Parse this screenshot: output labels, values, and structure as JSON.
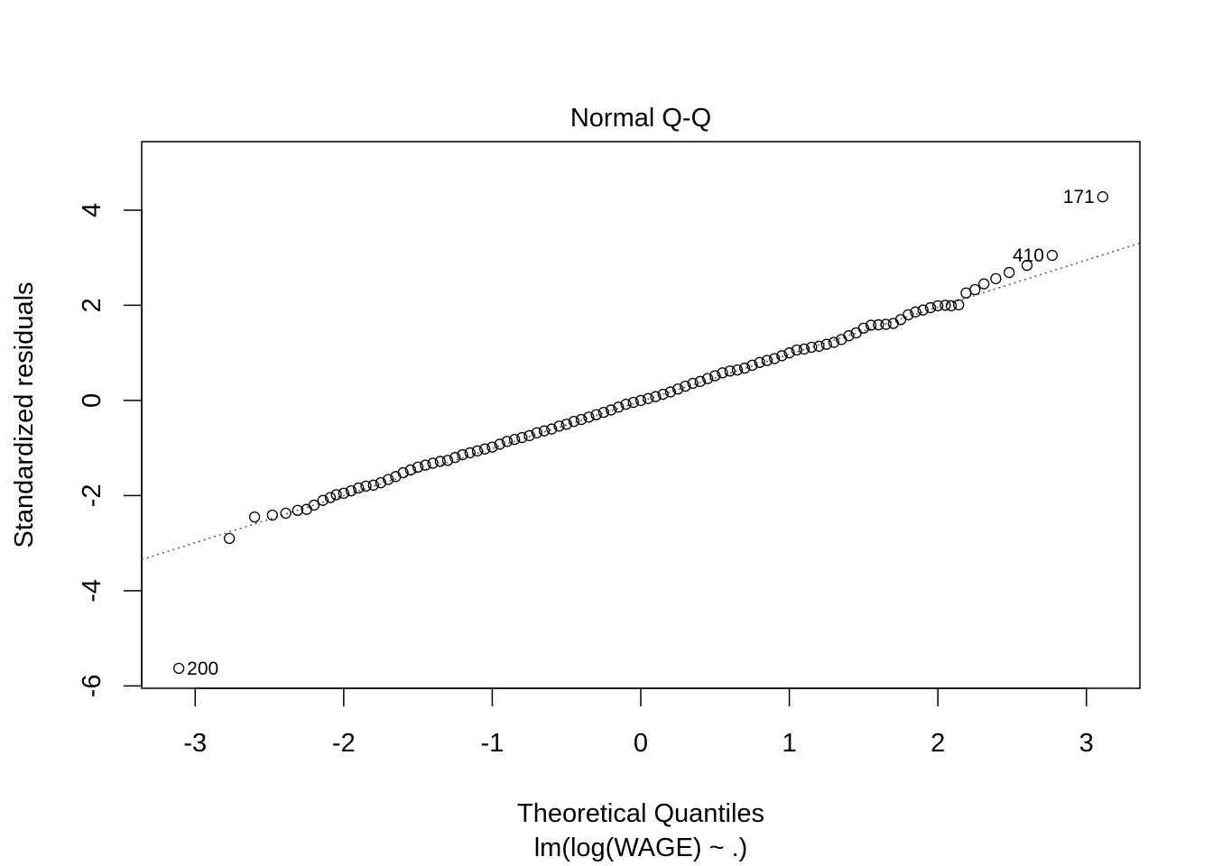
{
  "chart_data": {
    "type": "scatter",
    "title": "Normal Q-Q",
    "xlabel": "Theoretical Quantiles",
    "subtitle": "lm(log(WAGE) ~ .)",
    "ylabel": "Standardized residuals",
    "xlim": [
      -3.36,
      3.36
    ],
    "ylim": [
      -6.05,
      5.44
    ],
    "xticks": [
      -3,
      -2,
      -1,
      0,
      1,
      2,
      3
    ],
    "xtick_labels": [
      "-3",
      "-2",
      "-1",
      "0",
      "1",
      "2",
      "3"
    ],
    "yticks": [
      -6,
      -4,
      -2,
      0,
      2,
      4
    ],
    "ytick_labels": [
      "-6",
      "-4",
      "-2",
      "0",
      "2",
      "4"
    ],
    "grid": false,
    "reference_line": {
      "intercept": -0.02,
      "slope": 0.99,
      "style": "dotted",
      "color": "#555555"
    },
    "labeled_points": [
      {
        "label": "200",
        "x": -3.11,
        "y": -5.63,
        "label_side": "right"
      },
      {
        "label": "410",
        "x": 2.77,
        "y": 3.05,
        "label_side": "left"
      },
      {
        "label": "171",
        "x": 3.11,
        "y": 4.28,
        "label_side": "left"
      }
    ],
    "points": [
      [
        -2.77,
        -2.9
      ],
      [
        -2.6,
        -2.45
      ],
      [
        -2.48,
        -2.41
      ],
      [
        -2.39,
        -2.37
      ],
      [
        -2.31,
        -2.31
      ],
      [
        -2.25,
        -2.29
      ],
      [
        -2.2,
        -2.2
      ],
      [
        -2.14,
        -2.1
      ],
      [
        -2.09,
        -2.04
      ],
      [
        -2.05,
        -1.98
      ],
      [
        -2.0,
        -1.95
      ],
      [
        -1.95,
        -1.9
      ],
      [
        -1.9,
        -1.84
      ],
      [
        -1.85,
        -1.8
      ],
      [
        -1.8,
        -1.78
      ],
      [
        -1.75,
        -1.73
      ],
      [
        -1.7,
        -1.66
      ],
      [
        -1.65,
        -1.6
      ],
      [
        -1.6,
        -1.52
      ],
      [
        -1.55,
        -1.46
      ],
      [
        -1.5,
        -1.4
      ],
      [
        -1.45,
        -1.36
      ],
      [
        -1.4,
        -1.32
      ],
      [
        -1.35,
        -1.28
      ],
      [
        -1.3,
        -1.26
      ],
      [
        -1.25,
        -1.2
      ],
      [
        -1.2,
        -1.14
      ],
      [
        -1.15,
        -1.1
      ],
      [
        -1.1,
        -1.06
      ],
      [
        -1.05,
        -1.02
      ],
      [
        -1.0,
        -0.98
      ],
      [
        -0.95,
        -0.92
      ],
      [
        -0.9,
        -0.86
      ],
      [
        -0.85,
        -0.82
      ],
      [
        -0.8,
        -0.78
      ],
      [
        -0.75,
        -0.74
      ],
      [
        -0.7,
        -0.68
      ],
      [
        -0.65,
        -0.64
      ],
      [
        -0.6,
        -0.6
      ],
      [
        -0.55,
        -0.54
      ],
      [
        -0.5,
        -0.5
      ],
      [
        -0.45,
        -0.44
      ],
      [
        -0.4,
        -0.4
      ],
      [
        -0.35,
        -0.35
      ],
      [
        -0.3,
        -0.3
      ],
      [
        -0.25,
        -0.25
      ],
      [
        -0.2,
        -0.2
      ],
      [
        -0.15,
        -0.14
      ],
      [
        -0.1,
        -0.08
      ],
      [
        -0.05,
        -0.04
      ],
      [
        0.0,
        0.0
      ],
      [
        0.05,
        0.04
      ],
      [
        0.1,
        0.08
      ],
      [
        0.15,
        0.13
      ],
      [
        0.2,
        0.18
      ],
      [
        0.25,
        0.24
      ],
      [
        0.3,
        0.3
      ],
      [
        0.35,
        0.36
      ],
      [
        0.4,
        0.4
      ],
      [
        0.45,
        0.46
      ],
      [
        0.5,
        0.52
      ],
      [
        0.55,
        0.58
      ],
      [
        0.6,
        0.62
      ],
      [
        0.65,
        0.64
      ],
      [
        0.7,
        0.68
      ],
      [
        0.75,
        0.74
      ],
      [
        0.8,
        0.8
      ],
      [
        0.85,
        0.84
      ],
      [
        0.9,
        0.88
      ],
      [
        0.95,
        0.94
      ],
      [
        1.0,
        1.0
      ],
      [
        1.05,
        1.06
      ],
      [
        1.1,
        1.08
      ],
      [
        1.15,
        1.12
      ],
      [
        1.2,
        1.14
      ],
      [
        1.25,
        1.18
      ],
      [
        1.3,
        1.22
      ],
      [
        1.35,
        1.28
      ],
      [
        1.4,
        1.36
      ],
      [
        1.45,
        1.42
      ],
      [
        1.5,
        1.52
      ],
      [
        1.55,
        1.58
      ],
      [
        1.6,
        1.59
      ],
      [
        1.65,
        1.6
      ],
      [
        1.7,
        1.62
      ],
      [
        1.75,
        1.7
      ],
      [
        1.8,
        1.8
      ],
      [
        1.85,
        1.86
      ],
      [
        1.9,
        1.9
      ],
      [
        1.95,
        1.95
      ],
      [
        2.0,
        1.99
      ],
      [
        2.05,
        2.0
      ],
      [
        2.09,
        1.99
      ],
      [
        2.14,
        2.01
      ],
      [
        2.19,
        2.26
      ],
      [
        2.25,
        2.33
      ],
      [
        2.31,
        2.45
      ],
      [
        2.39,
        2.56
      ],
      [
        2.48,
        2.69
      ],
      [
        2.6,
        2.84
      ]
    ]
  }
}
